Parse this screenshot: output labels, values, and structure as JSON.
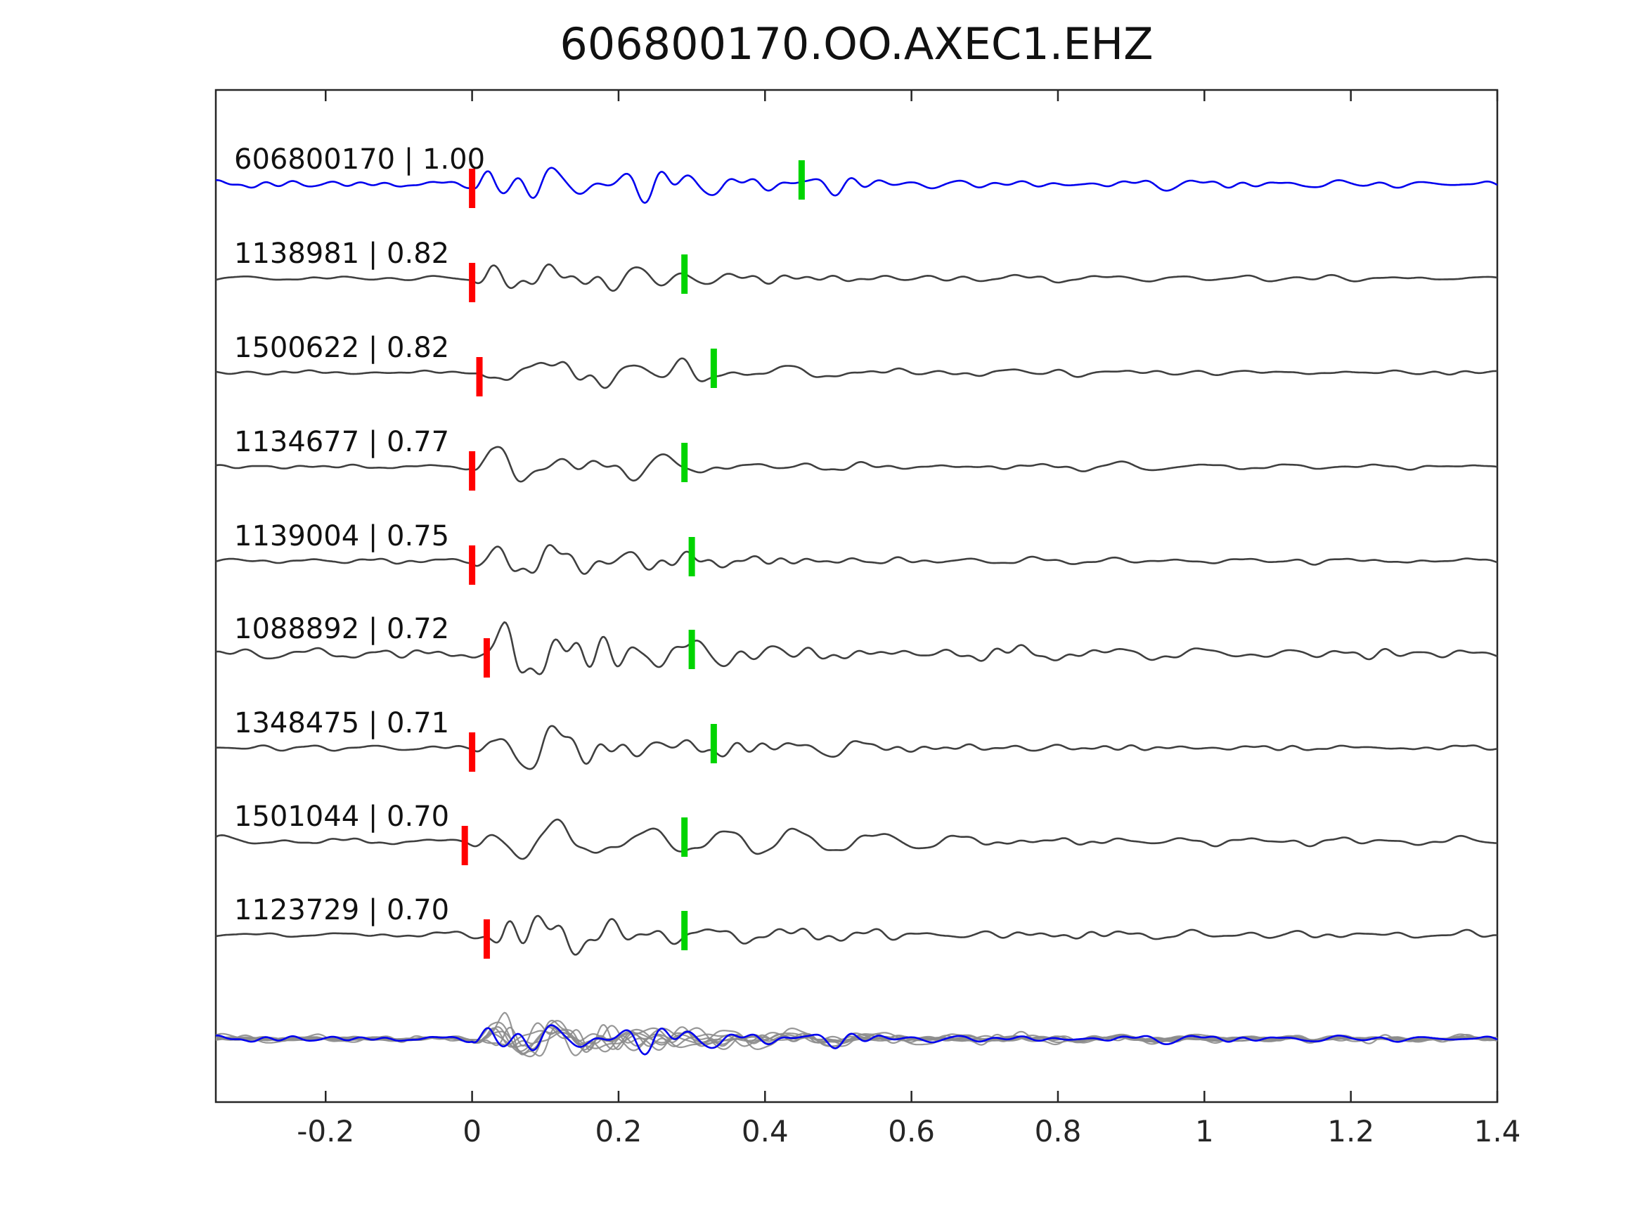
{
  "title": "606800170.OO.AXEC1.EHZ",
  "chart_data": {
    "type": "line",
    "description": "Matched-filter / template correlation waveform plot: nine aligned seismic traces labelled with event id and correlation coefficient, red pick mark near 0 s and green pick mark per trace, with an overlay stack of all traces at the bottom (template highlighted in blue).",
    "xlim": [
      -0.35,
      1.4
    ],
    "x_ticks": [
      "-0.2",
      "0",
      "0.2",
      "0.4",
      "0.6",
      "0.8",
      "1",
      "1.2",
      "1.4"
    ],
    "x_tick_values": [
      -0.2,
      0,
      0.2,
      0.4,
      0.6,
      0.8,
      1.0,
      1.2,
      1.4
    ],
    "grid": false,
    "legend": "none",
    "colors": {
      "template_trace": "#0000ee",
      "detection_trace": "#3f3f3f",
      "overlay_gray": "#8c8c8c",
      "pick_red": "#ff0000",
      "pick_green": "#00d400",
      "axis": "#262626"
    },
    "traces": [
      {
        "label": "606800170 | 1.00",
        "event_id": "606800170",
        "correlation": 1.0,
        "color": "#0000ee",
        "red_pick": 0.0,
        "green_pick": 0.45
      },
      {
        "label": "1138981 | 0.82",
        "event_id": "1138981",
        "correlation": 0.82,
        "color": "#3f3f3f",
        "red_pick": 0.0,
        "green_pick": 0.29
      },
      {
        "label": "1500622 | 0.82",
        "event_id": "1500622",
        "correlation": 0.82,
        "color": "#3f3f3f",
        "red_pick": 0.01,
        "green_pick": 0.33
      },
      {
        "label": "1134677 | 0.77",
        "event_id": "1134677",
        "correlation": 0.77,
        "color": "#3f3f3f",
        "red_pick": 0.0,
        "green_pick": 0.29
      },
      {
        "label": "1139004 | 0.75",
        "event_id": "1139004",
        "correlation": 0.75,
        "color": "#3f3f3f",
        "red_pick": 0.0,
        "green_pick": 0.3
      },
      {
        "label": "1088892 | 0.72",
        "event_id": "1088892",
        "correlation": 0.72,
        "color": "#3f3f3f",
        "red_pick": 0.02,
        "green_pick": 0.3
      },
      {
        "label": "1348475 | 0.71",
        "event_id": "1348475",
        "correlation": 0.71,
        "color": "#3f3f3f",
        "red_pick": 0.0,
        "green_pick": 0.33
      },
      {
        "label": "1501044 | 0.70",
        "event_id": "1501044",
        "correlation": 0.7,
        "color": "#3f3f3f",
        "red_pick": -0.01,
        "green_pick": 0.29
      },
      {
        "label": "1123729 | 0.70",
        "event_id": "1123729",
        "correlation": 0.7,
        "color": "#3f3f3f",
        "red_pick": 0.02,
        "green_pick": 0.29
      }
    ],
    "overlay": {
      "includes_all_traces": true,
      "highlighted_trace": "606800170",
      "highlight_color": "#0000ee"
    }
  }
}
